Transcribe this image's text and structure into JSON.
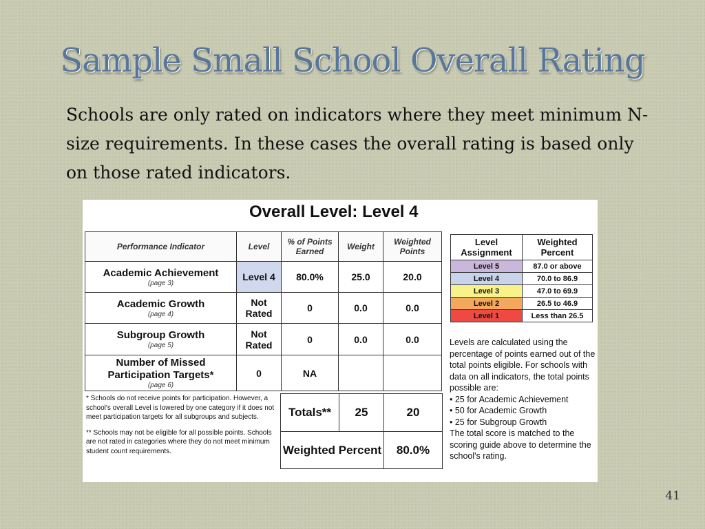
{
  "slide": {
    "title": "Sample Small School Overall Rating",
    "intro": "Schools are only rated on indicators where they meet minimum N-size requirements.  In these cases the overall rating is based only on those rated indicators.",
    "number": "41"
  },
  "panel": {
    "overall_title": "Overall Level: Level 4",
    "headers": {
      "indicator": "Performance Indicator",
      "level": "Level",
      "pct_earned": "% of Points Earned",
      "weight": "Weight",
      "weighted_points": "Weighted Points"
    },
    "rows": [
      {
        "name": "Academic Achievement",
        "page": "(page 3)",
        "level": "Level 4",
        "pct": "80.0%",
        "weight": "25.0",
        "points": "20.0"
      },
      {
        "name": "Academic Growth",
        "page": "(page 4)",
        "level": "Not Rated",
        "pct": "0",
        "weight": "0.0",
        "points": "0.0"
      },
      {
        "name": "Subgroup Growth",
        "page": "(page 5)",
        "level": "Not Rated",
        "pct": "0",
        "weight": "0.0",
        "points": "0.0"
      },
      {
        "name": "Number of Missed Participation Targets*",
        "page": "(page 6)",
        "level": "0",
        "pct": "NA",
        "weight": "",
        "points": ""
      }
    ],
    "footnotes": [
      "* Schools do not receive points for participation. However, a school's overall Level is lowered by one category if it does not meet participation targets for all subgroups and subjects.",
      "** Schools may not be eligible for all possible points. Schools are not rated in categories where they do not meet minimum student count requirements."
    ],
    "totals": {
      "label": "Totals**",
      "weight": "25",
      "points": "20"
    },
    "weighted_percent": {
      "label": "Weighted Percent",
      "value": "80.0%"
    },
    "level_table": {
      "headers": {
        "assignment": "Level Assignment",
        "percent": "Weighted Percent"
      },
      "rows": [
        {
          "level": "Level 5",
          "range": "87.0 or above",
          "color": "#c9b8dc"
        },
        {
          "level": "Level 4",
          "range": "70.0 to 86.9",
          "color": "#c9d3ea"
        },
        {
          "level": "Level 3",
          "range": "47.0 to 69.9",
          "color": "#f7f38a"
        },
        {
          "level": "Level 2",
          "range": "26.5 to 46.9",
          "color": "#f4a85e"
        },
        {
          "level": "Level 1",
          "range": "Less than 26.5",
          "color": "#ee4a43"
        }
      ]
    },
    "description": {
      "para1": "Levels are calculated using the percentage of points earned out of the total points eligible.  For schools with data on all indicators, the total points possible are:",
      "bullets": [
        "• 25 for Academic Achievement",
        "• 50 for Academic Growth",
        "• 25 for Subgroup Growth"
      ],
      "para2": "The total score is matched to the scoring guide above to determine the school's rating."
    }
  }
}
